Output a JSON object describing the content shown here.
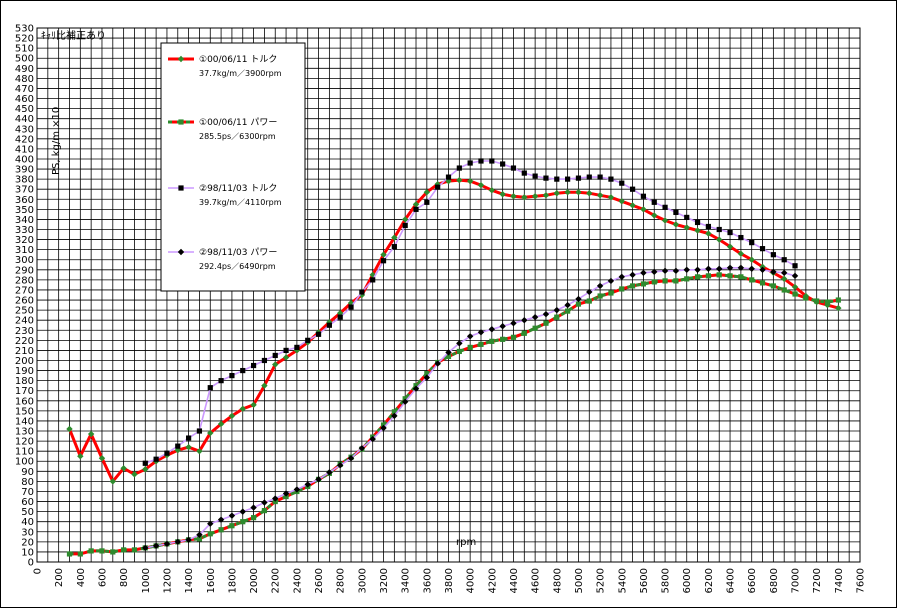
{
  "chart_data": {
    "type": "line",
    "title": "ｷｬﾘ比補正あり",
    "xlabel": "rpm",
    "ylabel": "PS, kg/m ×10",
    "xlim": [
      0,
      7600
    ],
    "ylim": [
      0,
      530
    ],
    "x_step": 200,
    "y_step": 10,
    "grid": true,
    "legend_position": "top-left",
    "series": [
      {
        "name": "①00/06/11 トルク",
        "subtitle": "37.7kg/m／3900rpm",
        "color": "#ff0000",
        "marker_color": "#2e8b2e",
        "marker": "diamond",
        "dashed": false,
        "points": [
          [
            300,
            132
          ],
          [
            400,
            105
          ],
          [
            500,
            127
          ],
          [
            600,
            103
          ],
          [
            700,
            80
          ],
          [
            800,
            93
          ],
          [
            900,
            87
          ],
          [
            1000,
            92
          ],
          [
            1100,
            100
          ],
          [
            1200,
            106
          ],
          [
            1300,
            111
          ],
          [
            1400,
            114
          ],
          [
            1500,
            110
          ],
          [
            1600,
            128
          ],
          [
            1700,
            137
          ],
          [
            1800,
            145
          ],
          [
            1900,
            152
          ],
          [
            2000,
            156
          ],
          [
            2100,
            175
          ],
          [
            2200,
            196
          ],
          [
            2300,
            203
          ],
          [
            2400,
            210
          ],
          [
            2500,
            218
          ],
          [
            2600,
            228
          ],
          [
            2700,
            238
          ],
          [
            2800,
            247
          ],
          [
            2900,
            257
          ],
          [
            3000,
            265
          ],
          [
            3100,
            285
          ],
          [
            3200,
            305
          ],
          [
            3300,
            322
          ],
          [
            3400,
            340
          ],
          [
            3500,
            355
          ],
          [
            3600,
            367
          ],
          [
            3700,
            375
          ],
          [
            3800,
            378
          ],
          [
            3900,
            379
          ],
          [
            4000,
            378
          ],
          [
            4100,
            374
          ],
          [
            4200,
            369
          ],
          [
            4300,
            365
          ],
          [
            4400,
            363
          ],
          [
            4500,
            362
          ],
          [
            4600,
            363
          ],
          [
            4700,
            364
          ],
          [
            4800,
            366
          ],
          [
            4900,
            367
          ],
          [
            5000,
            367
          ],
          [
            5100,
            366
          ],
          [
            5200,
            364
          ],
          [
            5300,
            362
          ],
          [
            5400,
            358
          ],
          [
            5500,
            354
          ],
          [
            5600,
            350
          ],
          [
            5700,
            344
          ],
          [
            5800,
            339
          ],
          [
            5900,
            335
          ],
          [
            6000,
            332
          ],
          [
            6100,
            329
          ],
          [
            6200,
            326
          ],
          [
            6300,
            320
          ],
          [
            6400,
            313
          ],
          [
            6500,
            306
          ],
          [
            6600,
            300
          ],
          [
            6700,
            293
          ],
          [
            6800,
            287
          ],
          [
            6900,
            281
          ],
          [
            7000,
            273
          ],
          [
            7100,
            264
          ],
          [
            7200,
            258
          ],
          [
            7300,
            255
          ],
          [
            7400,
            252
          ]
        ]
      },
      {
        "name": "①00/06/11 パワー",
        "subtitle": "285.5ps／6300rpm",
        "color": "#ff0000",
        "marker_color": "#2e8b2e",
        "marker": "square",
        "dashed": true,
        "points": [
          [
            300,
            8
          ],
          [
            400,
            8
          ],
          [
            500,
            11
          ],
          [
            600,
            11
          ],
          [
            700,
            10
          ],
          [
            800,
            12
          ],
          [
            900,
            12
          ],
          [
            1000,
            14
          ],
          [
            1100,
            16
          ],
          [
            1200,
            18
          ],
          [
            1300,
            20
          ],
          [
            1400,
            22
          ],
          [
            1500,
            23
          ],
          [
            1600,
            28
          ],
          [
            1700,
            32
          ],
          [
            1800,
            36
          ],
          [
            1900,
            40
          ],
          [
            2000,
            44
          ],
          [
            2100,
            51
          ],
          [
            2200,
            60
          ],
          [
            2300,
            65
          ],
          [
            2400,
            70
          ],
          [
            2500,
            75
          ],
          [
            2600,
            82
          ],
          [
            2700,
            88
          ],
          [
            2800,
            97
          ],
          [
            2900,
            104
          ],
          [
            3000,
            112
          ],
          [
            3100,
            124
          ],
          [
            3200,
            136
          ],
          [
            3300,
            149
          ],
          [
            3400,
            162
          ],
          [
            3500,
            175
          ],
          [
            3600,
            187
          ],
          [
            3700,
            198
          ],
          [
            3800,
            204
          ],
          [
            3900,
            209
          ],
          [
            4000,
            213
          ],
          [
            4100,
            216
          ],
          [
            4200,
            219
          ],
          [
            4300,
            221
          ],
          [
            4400,
            223
          ],
          [
            4500,
            227
          ],
          [
            4600,
            232
          ],
          [
            4700,
            237
          ],
          [
            4800,
            243
          ],
          [
            4900,
            249
          ],
          [
            5000,
            256
          ],
          [
            5100,
            259
          ],
          [
            5200,
            264
          ],
          [
            5300,
            267
          ],
          [
            5400,
            271
          ],
          [
            5500,
            274
          ],
          [
            5600,
            276
          ],
          [
            5700,
            278
          ],
          [
            5800,
            279
          ],
          [
            5900,
            279
          ],
          [
            6000,
            281
          ],
          [
            6100,
            283
          ],
          [
            6200,
            284
          ],
          [
            6300,
            285
          ],
          [
            6400,
            284
          ],
          [
            6500,
            283
          ],
          [
            6600,
            280
          ],
          [
            6700,
            277
          ],
          [
            6800,
            274
          ],
          [
            6900,
            270
          ],
          [
            7000,
            266
          ],
          [
            7100,
            262
          ],
          [
            7200,
            259
          ],
          [
            7300,
            258
          ],
          [
            7400,
            260
          ]
        ]
      },
      {
        "name": "②98/11/03 トルク",
        "subtitle": "39.7kg/m／4110rpm",
        "color": "#cc99ff",
        "marker_color": "#000000",
        "marker": "square",
        "dashed": false,
        "points": [
          [
            1000,
            98
          ],
          [
            1100,
            102
          ],
          [
            1200,
            108
          ],
          [
            1300,
            115
          ],
          [
            1400,
            123
          ],
          [
            1500,
            130
          ],
          [
            1600,
            173
          ],
          [
            1700,
            180
          ],
          [
            1800,
            185
          ],
          [
            1900,
            190
          ],
          [
            2000,
            195
          ],
          [
            2100,
            200
          ],
          [
            2200,
            205
          ],
          [
            2300,
            210
          ],
          [
            2400,
            213
          ],
          [
            2500,
            220
          ],
          [
            2600,
            226
          ],
          [
            2700,
            235
          ],
          [
            2800,
            243
          ],
          [
            2900,
            253
          ],
          [
            3000,
            268
          ],
          [
            3100,
            280
          ],
          [
            3200,
            299
          ],
          [
            3300,
            313
          ],
          [
            3400,
            334
          ],
          [
            3500,
            350
          ],
          [
            3600,
            357
          ],
          [
            3700,
            372
          ],
          [
            3800,
            382
          ],
          [
            3900,
            391
          ],
          [
            4000,
            396
          ],
          [
            4100,
            398
          ],
          [
            4200,
            398
          ],
          [
            4300,
            395
          ],
          [
            4400,
            391
          ],
          [
            4500,
            386
          ],
          [
            4600,
            383
          ],
          [
            4700,
            381
          ],
          [
            4800,
            380
          ],
          [
            4900,
            380
          ],
          [
            5000,
            381
          ],
          [
            5100,
            382
          ],
          [
            5200,
            382
          ],
          [
            5300,
            380
          ],
          [
            5400,
            376
          ],
          [
            5500,
            370
          ],
          [
            5600,
            363
          ],
          [
            5700,
            357
          ],
          [
            5800,
            352
          ],
          [
            5900,
            347
          ],
          [
            6000,
            342
          ],
          [
            6100,
            337
          ],
          [
            6200,
            333
          ],
          [
            6300,
            330
          ],
          [
            6400,
            327
          ],
          [
            6500,
            322
          ],
          [
            6600,
            317
          ],
          [
            6700,
            311
          ],
          [
            6800,
            305
          ],
          [
            6900,
            300
          ],
          [
            7000,
            294
          ]
        ]
      },
      {
        "name": "②98/11/03 パワー",
        "subtitle": "292.4ps／6490rpm",
        "color": "#cc99ff",
        "marker_color": "#000000",
        "marker": "diamond",
        "dashed": false,
        "points": [
          [
            1000,
            14
          ],
          [
            1100,
            16
          ],
          [
            1200,
            18
          ],
          [
            1300,
            20
          ],
          [
            1400,
            22
          ],
          [
            1500,
            27
          ],
          [
            1600,
            38
          ],
          [
            1700,
            42
          ],
          [
            1800,
            46
          ],
          [
            1900,
            50
          ],
          [
            2000,
            54
          ],
          [
            2100,
            59
          ],
          [
            2200,
            63
          ],
          [
            2300,
            68
          ],
          [
            2400,
            72
          ],
          [
            2500,
            77
          ],
          [
            2600,
            82
          ],
          [
            2700,
            89
          ],
          [
            2800,
            96
          ],
          [
            2900,
            103
          ],
          [
            3000,
            113
          ],
          [
            3100,
            122
          ],
          [
            3200,
            133
          ],
          [
            3300,
            145
          ],
          [
            3400,
            159
          ],
          [
            3500,
            172
          ],
          [
            3600,
            183
          ],
          [
            3700,
            197
          ],
          [
            3800,
            208
          ],
          [
            3900,
            217
          ],
          [
            4000,
            224
          ],
          [
            4100,
            228
          ],
          [
            4200,
            231
          ],
          [
            4300,
            234
          ],
          [
            4400,
            237
          ],
          [
            4500,
            240
          ],
          [
            4600,
            243
          ],
          [
            4700,
            246
          ],
          [
            4800,
            250
          ],
          [
            4900,
            255
          ],
          [
            5000,
            261
          ],
          [
            5100,
            268
          ],
          [
            5200,
            274
          ],
          [
            5300,
            279
          ],
          [
            5400,
            283
          ],
          [
            5500,
            285
          ],
          [
            5600,
            287
          ],
          [
            5700,
            288
          ],
          [
            5800,
            289
          ],
          [
            5900,
            289
          ],
          [
            6000,
            290
          ],
          [
            6100,
            290
          ],
          [
            6200,
            291
          ],
          [
            6300,
            291
          ],
          [
            6400,
            292
          ],
          [
            6500,
            292
          ],
          [
            6600,
            291
          ],
          [
            6700,
            290
          ],
          [
            6800,
            288
          ],
          [
            6900,
            287
          ],
          [
            7000,
            284
          ]
        ]
      }
    ]
  }
}
